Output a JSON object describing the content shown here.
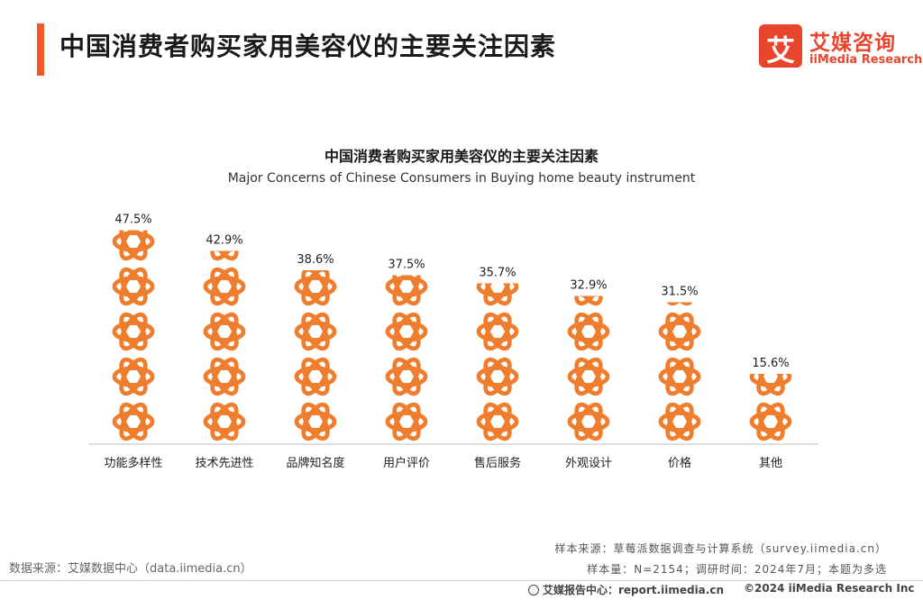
{
  "page": {
    "title": "中国消费者购买家用美容仪的主要关注因素",
    "accent_color": "#f05a28"
  },
  "logo": {
    "glyph": "艾",
    "name_cn": "艾媒咨询",
    "name_en": "iiMedia Research",
    "color": "#e8452c"
  },
  "chart_data": {
    "type": "bar",
    "title": "中国消费者购买家用美容仪的主要关注因素",
    "subtitle": "Major Concerns of Chinese Consumers in Buying home beauty instrument",
    "categories": [
      "功能多样性",
      "技术先进性",
      "品牌知名度",
      "用户评价",
      "售后服务",
      "外观设计",
      "价格",
      "其他"
    ],
    "values": [
      47.5,
      42.9,
      38.6,
      37.5,
      35.7,
      32.9,
      31.5,
      15.6
    ],
    "value_labels": [
      "47.5%",
      "42.9%",
      "38.6%",
      "37.5%",
      "35.7%",
      "32.9%",
      "31.5%",
      "15.6%"
    ],
    "unit": "%",
    "ylim": [
      0,
      50
    ],
    "grid": false,
    "legend": "none",
    "bar_style": "stacked orange atom-shaped pictogram icons",
    "bar_color": "#ee7d2d"
  },
  "footer": {
    "source_left": "数据来源：艾媒数据中心（data.iimedia.cn）",
    "sample_source": "样本来源：草莓派数据调查与计算系统（survey.iimedia.cn）",
    "sample_info": "样本量：N=2154；调研时间：2024年7月；本题为多选",
    "report_center": "艾媒报告中心：report.iimedia.cn",
    "copyright": "©2024  iiMedia Research  Inc"
  }
}
